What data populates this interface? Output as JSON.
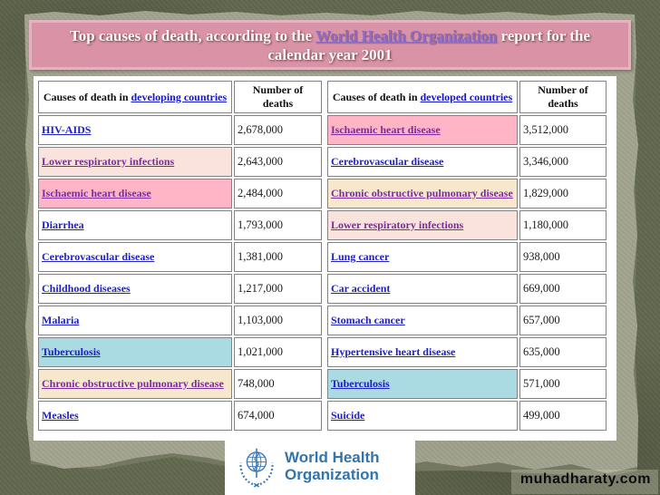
{
  "banner": {
    "text_before": "Top causes of death, according to the ",
    "link_text": "World Health Organization",
    "text_after": " report for the calendar year 2001"
  },
  "palette": {
    "white": "#ffffff",
    "pink": "#ffb5c5",
    "rose": "#fae3dd",
    "cream": "#f7e8cd",
    "blue": "#abdbe2"
  },
  "link_colors": {
    "normal": "#1f1fc4",
    "visited": "#7b2d9b"
  },
  "table": {
    "left_header": {
      "prefix": "Causes of death in ",
      "link": "developing countries",
      "number": "Number of deaths"
    },
    "right_header": {
      "prefix": "Causes of death in ",
      "link": "developed countries",
      "number": "Number of deaths"
    },
    "rows": [
      {
        "c1": "HIV-AIDS",
        "bg1": "white",
        "v1": false,
        "n1": "2,678,000",
        "c2": "Ischaemic heart disease",
        "bg2": "pink",
        "v2": true,
        "n2": "3,512,000"
      },
      {
        "c1": "Lower respiratory infections",
        "bg1": "rose",
        "v1": true,
        "n1": "2,643,000",
        "c2": "Cerebrovascular disease",
        "bg2": "white",
        "v2": false,
        "n2": "3,346,000"
      },
      {
        "c1": "Ischaemic heart disease",
        "bg1": "pink",
        "v1": true,
        "n1": "2,484,000",
        "c2": "Chronic obstructive pulmonary disease",
        "bg2": "cream",
        "v2": true,
        "n2": "1,829,000"
      },
      {
        "c1": "Diarrhea",
        "bg1": "white",
        "v1": false,
        "n1": "1,793,000",
        "c2": "Lower respiratory infections",
        "bg2": "rose",
        "v2": true,
        "n2": "1,180,000"
      },
      {
        "c1": "Cerebrovascular disease",
        "bg1": "white",
        "v1": false,
        "n1": "1,381,000",
        "c2": "Lung cancer",
        "bg2": "white",
        "v2": false,
        "n2": "938,000"
      },
      {
        "c1": "Childhood diseases",
        "bg1": "white",
        "v1": false,
        "n1": "1,217,000",
        "c2": "Car accident",
        "bg2": "white",
        "v2": false,
        "n2": "669,000"
      },
      {
        "c1": "Malaria",
        "bg1": "white",
        "v1": false,
        "n1": "1,103,000",
        "c2": "Stomach cancer",
        "bg2": "white",
        "v2": false,
        "n2": "657,000"
      },
      {
        "c1": "Tuberculosis",
        "bg1": "blue",
        "v1": false,
        "n1": "1,021,000",
        "c2": "Hypertensive heart disease",
        "bg2": "white",
        "v2": false,
        "n2": "635,000"
      },
      {
        "c1": "Chronic obstructive pulmonary disease",
        "bg1": "cream",
        "v1": true,
        "n1": "748,000",
        "c2": "Tuberculosis",
        "bg2": "blue",
        "v2": false,
        "n2": "571,000"
      },
      {
        "c1": "Measles",
        "bg1": "white",
        "v1": false,
        "n1": "674,000",
        "c2": "Suicide",
        "bg2": "white",
        "v2": false,
        "n2": "499,000"
      }
    ]
  },
  "logo": {
    "line1": "World Health",
    "line2": "Organization",
    "color": "#3b7ab8"
  },
  "watermark": "muhadharaty.com"
}
